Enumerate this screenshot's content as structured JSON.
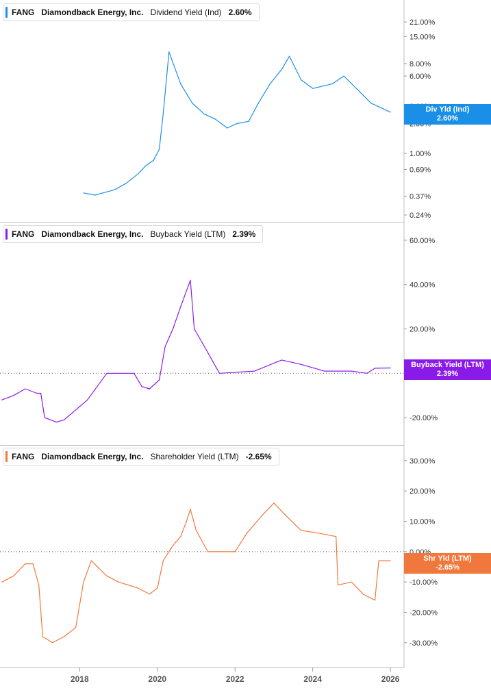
{
  "colors": {
    "div": "#1a8fe8",
    "buy": "#8a1ae8",
    "shr": "#f0783c"
  },
  "x_axis": {
    "ticks": [
      "2018",
      "2020",
      "2022",
      "2024",
      "2026"
    ]
  },
  "legends": [
    {
      "ticker": "FANG",
      "company": "Diamondback Energy, Inc.",
      "metric": "Dividend Yield (Ind)",
      "value": "2.60%"
    },
    {
      "ticker": "FANG",
      "company": "Diamondback Energy, Inc.",
      "metric": "Buyback Yield (LTM)",
      "value": "2.39%"
    },
    {
      "ticker": "FANG",
      "company": "Diamondback Energy, Inc.",
      "metric": "Shareholder Yield (LTM)",
      "value": "-2.65%"
    }
  ],
  "tags": [
    {
      "label": "Div Yld (Ind)",
      "value": "2.60%"
    },
    {
      "label": "Buyback Yield (LTM)",
      "value": "2.39%"
    },
    {
      "label": "Shr Yld (LTM)",
      "value": "-2.65%"
    }
  ],
  "chart_data": [
    {
      "type": "line",
      "series": [
        {
          "name": "Dividend Yield (Ind)",
          "color": "#1a8fe8"
        }
      ],
      "y_scale": "log",
      "y_ticks": [
        "21.00%",
        "15.00%",
        "8.00%",
        "6.00%",
        "3.00%",
        "2.00%",
        "1.00%",
        "0.69%",
        "0.37%",
        "0.24%"
      ],
      "y_tick_values": [
        21,
        15,
        8,
        6,
        3,
        2,
        1,
        0.69,
        0.37,
        0.24
      ],
      "x": [
        2018.1,
        2018.4,
        2018.6,
        2018.9,
        2019.2,
        2019.5,
        2019.7,
        2019.9,
        2020.05,
        2020.15,
        2020.3,
        2020.6,
        2020.9,
        2021.2,
        2021.5,
        2021.8,
        2022.05,
        2022.35,
        2022.6,
        2022.9,
        2023.2,
        2023.4,
        2023.7,
        2024.0,
        2024.5,
        2024.8,
        2025.2,
        2025.5,
        2026.0
      ],
      "values": [
        0.4,
        0.38,
        0.4,
        0.43,
        0.5,
        0.62,
        0.75,
        0.85,
        1.1,
        2.5,
        10.5,
        5.0,
        3.2,
        2.5,
        2.2,
        1.8,
        2.0,
        2.1,
        3.2,
        5.0,
        7.0,
        9.5,
        5.5,
        4.5,
        5.0,
        6.0,
        4.2,
        3.2,
        2.6
      ],
      "ylim": [
        0.24,
        28
      ]
    },
    {
      "type": "line",
      "series": [
        {
          "name": "Buyback Yield (LTM)",
          "color": "#8a1ae8"
        }
      ],
      "y_ticks": [
        "60.00%",
        "40.00%",
        "20.00%",
        "-20.00%"
      ],
      "y_tick_values": [
        60,
        40,
        20,
        -20
      ],
      "x": [
        2016.0,
        2016.3,
        2016.6,
        2016.9,
        2017.0,
        2017.1,
        2017.4,
        2017.6,
        2018.0,
        2018.2,
        2018.7,
        2019.4,
        2019.6,
        2019.8,
        2020.05,
        2020.2,
        2020.4,
        2020.6,
        2020.85,
        2020.95,
        2021.15,
        2021.6,
        2022.5,
        2023.2,
        2023.7,
        2024.3,
        2025.0,
        2025.4,
        2025.6,
        2026.0
      ],
      "values": [
        -12,
        -10,
        -7,
        -9,
        -9,
        -20,
        -22,
        -21,
        -15,
        -12,
        0,
        0,
        -6,
        -7,
        -3,
        12,
        20,
        30,
        42,
        20,
        14,
        0,
        1,
        6,
        4,
        1,
        1,
        0,
        2.3,
        2.4
      ],
      "ylim": [
        -28,
        64
      ]
    },
    {
      "type": "line",
      "series": [
        {
          "name": "Shareholder Yield (LTM)",
          "color": "#f0783c"
        }
      ],
      "y_ticks": [
        "30.00%",
        "20.00%",
        "10.00%",
        "0.00%",
        "-10.00%",
        "-20.00%",
        "-30.00%"
      ],
      "y_tick_values": [
        30,
        20,
        10,
        0,
        -10,
        -20,
        -30
      ],
      "x": [
        2016.0,
        2016.3,
        2016.6,
        2016.8,
        2016.95,
        2017.05,
        2017.3,
        2017.6,
        2017.9,
        2018.1,
        2018.3,
        2018.7,
        2019.0,
        2019.5,
        2019.8,
        2020.0,
        2020.15,
        2020.4,
        2020.6,
        2020.75,
        2020.85,
        2021.0,
        2021.3,
        2022.0,
        2022.3,
        2022.7,
        2023.0,
        2023.3,
        2023.7,
        2024.2,
        2024.6,
        2024.65,
        2025.0,
        2025.3,
        2025.6,
        2025.7,
        2026.0
      ],
      "values": [
        -10,
        -8,
        -4,
        -4,
        -11,
        -28,
        -30,
        -28,
        -25,
        -10,
        -3,
        -8,
        -10,
        -12,
        -14,
        -12,
        -3,
        2,
        5,
        10,
        14,
        7,
        0,
        0,
        6,
        12,
        16,
        12,
        7,
        6,
        5,
        -11,
        -10,
        -14,
        -16,
        -3,
        -3
      ],
      "ylim": [
        -35,
        32
      ]
    }
  ]
}
